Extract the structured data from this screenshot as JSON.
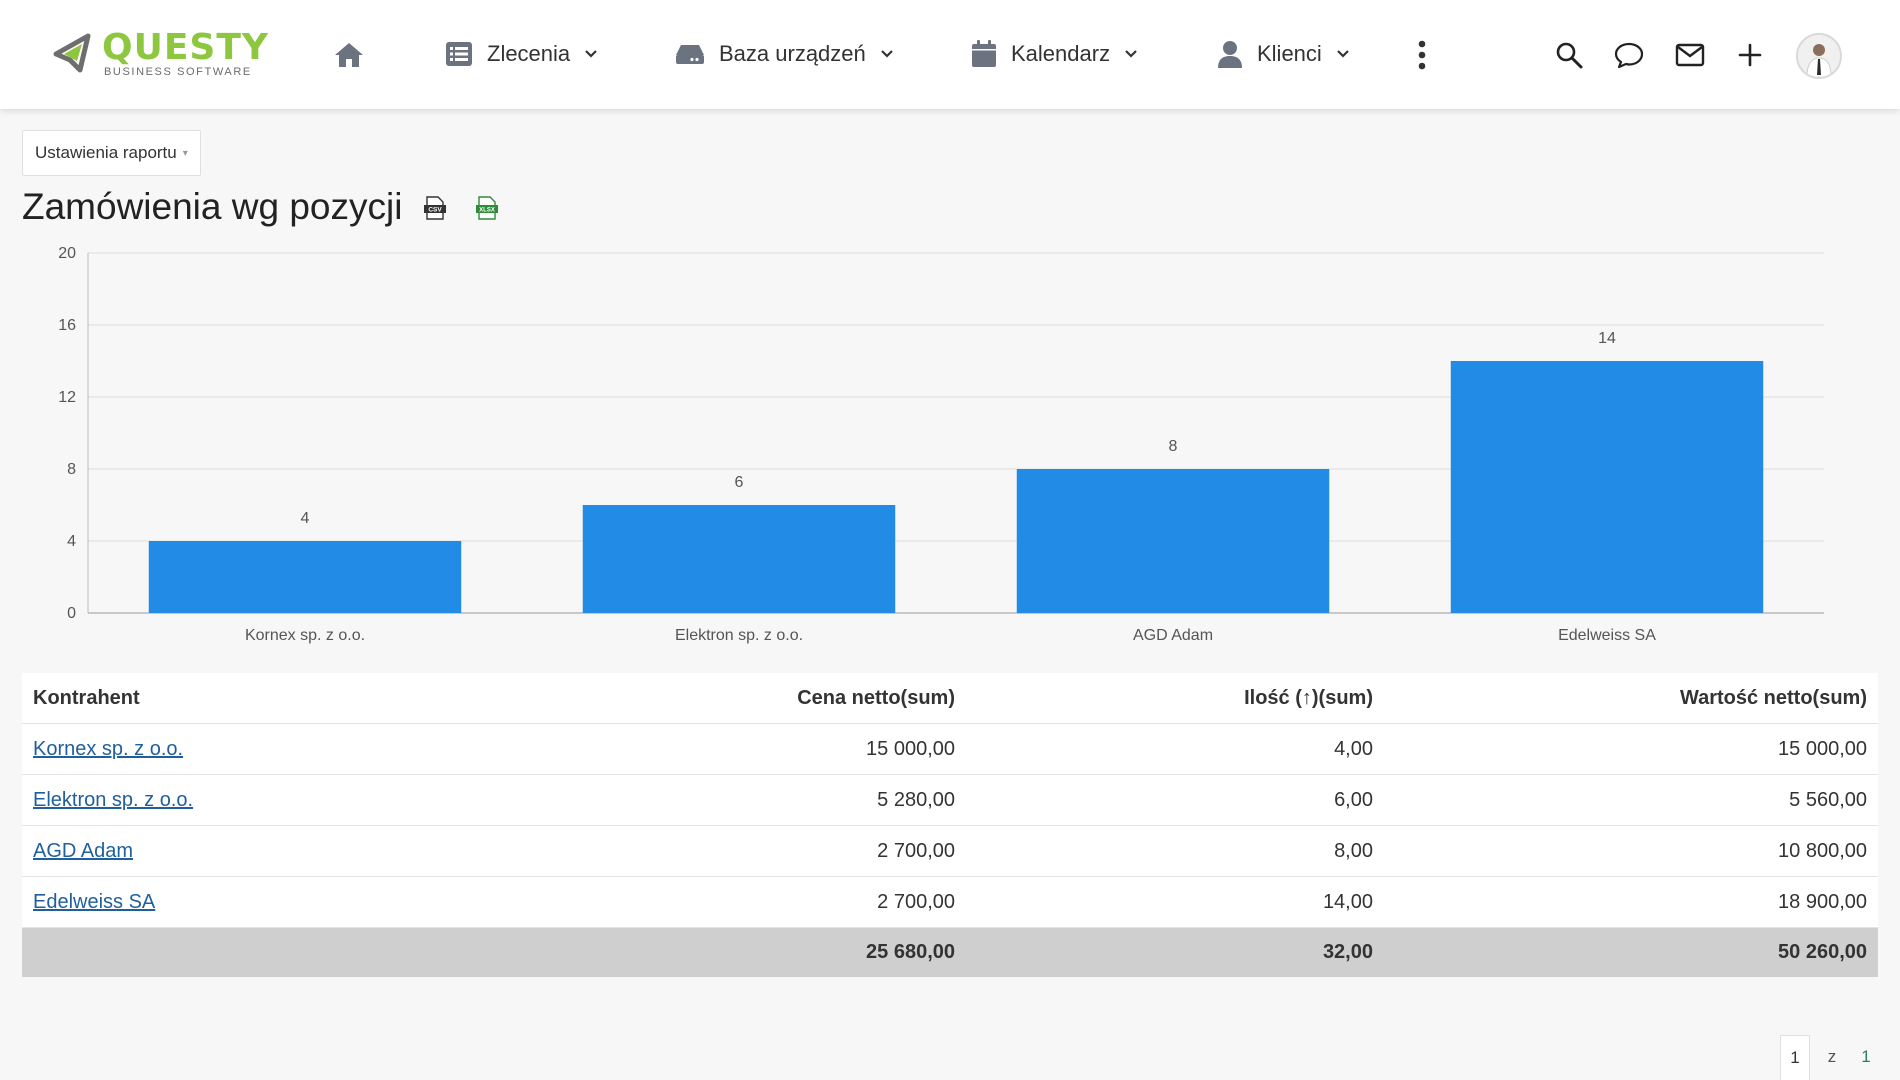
{
  "brand": {
    "name": "QUESTY",
    "tagline": "BUSINESS SOFTWARE",
    "primary_color": "#8dc63f",
    "accent_color": "#228be6"
  },
  "nav": {
    "home_icon": "home-icon",
    "items": [
      {
        "label": "Zlecenia",
        "icon": "list-icon"
      },
      {
        "label": "Baza urządzeń",
        "icon": "hard-drive-icon"
      },
      {
        "label": "Kalendarz",
        "icon": "calendar-icon"
      },
      {
        "label": "Klienci",
        "icon": "user-icon"
      }
    ],
    "right_icons": [
      "search-icon",
      "chat-icon",
      "mail-icon",
      "plus-icon"
    ]
  },
  "report": {
    "settings_label": "Ustawienia raportu",
    "title": "Zamówienia wg pozycji",
    "exports": [
      "csv-export-icon",
      "xlsx-export-icon"
    ]
  },
  "chart_data": {
    "type": "bar",
    "categories": [
      "Kornex sp. z o.o.",
      "Elektron sp. z o.o.",
      "AGD Adam",
      "Edelweiss SA"
    ],
    "values": [
      4,
      6,
      8,
      14
    ],
    "yticks": [
      0,
      4,
      8,
      12,
      16,
      20
    ],
    "ylim": [
      0,
      20
    ],
    "grid": true,
    "data_labels": true,
    "color": "#228be6"
  },
  "table": {
    "headers": [
      "Kontrahent",
      "Cena netto(sum)",
      "Ilość (↑)(sum)",
      "Wartość netto(sum)"
    ],
    "rows": [
      [
        "Kornex sp. z o.o.",
        "15 000,00",
        "4,00",
        "15 000,00"
      ],
      [
        "Elektron sp. z o.o.",
        "5 280,00",
        "6,00",
        "5 560,00"
      ],
      [
        "AGD Adam",
        "2 700,00",
        "8,00",
        "10 800,00"
      ],
      [
        "Edelweiss SA",
        "2 700,00",
        "14,00",
        "18 900,00"
      ]
    ],
    "totals": [
      "",
      "25 680,00",
      "32,00",
      "50 260,00"
    ]
  },
  "pagination": {
    "current": "1",
    "separator": "z",
    "total": "1"
  }
}
